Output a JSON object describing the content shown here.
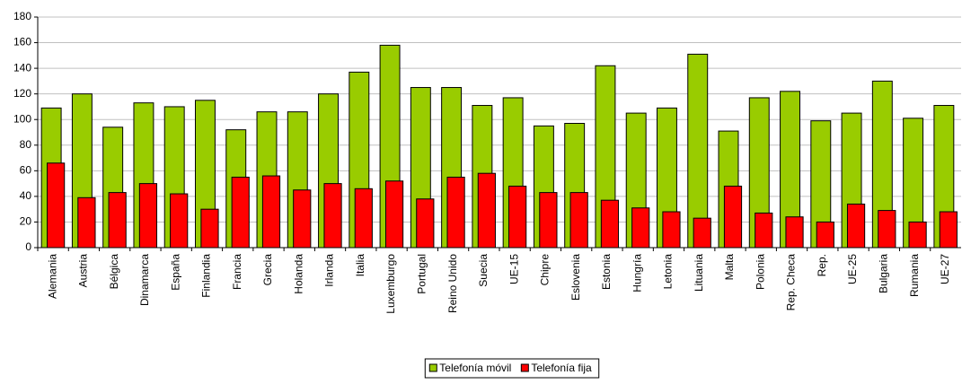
{
  "chart_data": {
    "type": "bar",
    "categories": [
      "Alemania",
      "Austria",
      "Bélgica",
      "Dinamarca",
      "España",
      "Finlandia",
      "Francia",
      "Grecia",
      "Holanda",
      "Irlanda",
      "Italia",
      "Luxemburgo",
      "Portugal",
      "Reino Unido",
      "Suecia",
      "UE-15",
      "Chipre",
      "Eslovenia",
      "Estonia",
      "Hungría",
      "Letonia",
      "Lituania",
      "Malta",
      "Polonia",
      "Rep. Checa",
      "Rep.",
      "UE-25",
      "Bulgaria",
      "Rumania",
      "UE-27"
    ],
    "series": [
      {
        "name": "Telefonía móvil",
        "color": "#99cc00",
        "values": [
          109,
          120,
          94,
          113,
          110,
          115,
          92,
          106,
          106,
          120,
          137,
          158,
          125,
          125,
          111,
          117,
          95,
          97,
          142,
          105,
          109,
          151,
          91,
          117,
          122,
          99,
          105,
          130,
          101,
          111
        ]
      },
      {
        "name": "Telefonía fija",
        "color": "#ff0000",
        "values": [
          66,
          39,
          43,
          50,
          42,
          30,
          55,
          56,
          45,
          50,
          46,
          52,
          38,
          55,
          58,
          48,
          43,
          43,
          37,
          31,
          28,
          23,
          48,
          27,
          24,
          20,
          34,
          29,
          20,
          28
        ]
      }
    ],
    "ylim": [
      0,
      180
    ],
    "yticks": [
      0,
      20,
      40,
      60,
      80,
      100,
      120,
      140,
      160,
      180
    ],
    "grid": true,
    "legend": "bottom"
  }
}
